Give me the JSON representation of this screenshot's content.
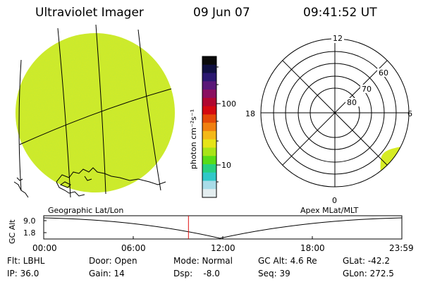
{
  "header": {
    "instrument": "Ultraviolet Imager",
    "date": "09 Jun 07",
    "time": "09:41:52 UT"
  },
  "colorbar": {
    "unit_label": "photon cm⁻²s⁻¹",
    "tick_labels": [
      "100",
      "10"
    ],
    "colors": [
      "#0a0a0a",
      "#101040",
      "#2a1870",
      "#5a1878",
      "#8a1060",
      "#b00830",
      "#d40a10",
      "#e44a08",
      "#f08010",
      "#f4b818",
      "#e6e418",
      "#a8e418",
      "#58dc18",
      "#28d080",
      "#30c8c8",
      "#a8dce8",
      "#e4eef0"
    ]
  },
  "left_map": {
    "label": "Geographic Lat/Lon",
    "fill_color": "#d6ec24"
  },
  "right_polar": {
    "label": "Apex MLat/MLT",
    "mlt_labels": [
      "12",
      "18",
      "6",
      "0"
    ],
    "mlat_labels": [
      "60",
      "70",
      "80"
    ],
    "fill_color": "#d6ec24"
  },
  "altitude_plot": {
    "ylabel": "GC Alt",
    "y_ticks": [
      "9.0",
      "1.8"
    ],
    "x_ticks": [
      "00:00",
      "06:00",
      "12:00",
      "18:00",
      "23:59"
    ],
    "current_time_marker_hour": 9.7,
    "marker_color": "#e01010"
  },
  "info": {
    "filter": "Flt: LBHL",
    "ip": "IP: 36.0",
    "door": "Door: Open",
    "gain": "Gain: 14",
    "mode": "Mode: Normal",
    "dsp": "Dsp:    -8.0",
    "gc_alt": "GC Alt: 4.6 Re",
    "seq": "Seq: 39",
    "glat": "GLat: -42.2",
    "glon": "GLon: 272.5"
  }
}
